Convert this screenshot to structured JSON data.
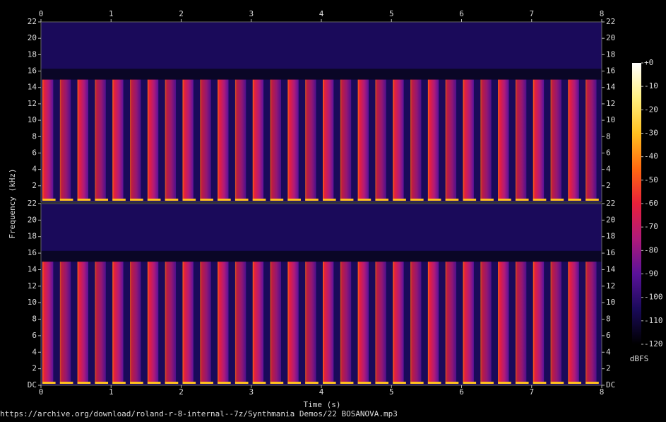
{
  "chart_data": {
    "type": "spectrogram",
    "xlabel": "Time (s)",
    "ylabel": "Frequency (kHz)",
    "xlim": [
      0,
      8
    ],
    "xticks": [
      0,
      1,
      2,
      3,
      4,
      5,
      6,
      7,
      8
    ],
    "ylim": [
      0,
      22
    ],
    "yticks": [
      {
        "value": 0,
        "label": "DC"
      },
      2,
      4,
      6,
      8,
      10,
      12,
      14,
      16,
      18,
      20,
      22
    ],
    "channels": 2,
    "colormap": [
      "#000000",
      "#1a0a5a",
      "#5a129a",
      "#b01a7a",
      "#e8203a",
      "#ff6a10",
      "#ffc020",
      "#fff080",
      "#ffffff"
    ],
    "colorbar": {
      "label": "dBFS",
      "lim": [
        -120,
        0
      ],
      "ticks": [
        {
          "value": 0,
          "label": "+0"
        },
        -10,
        -20,
        -30,
        -40,
        -50,
        -60,
        -70,
        -80,
        -90,
        -100,
        -110,
        -120
      ]
    },
    "footer": "https://archive.org/download/roland-r-8-internal--7z/Synthmania Demos/22 BOSANOVA.mp3"
  }
}
